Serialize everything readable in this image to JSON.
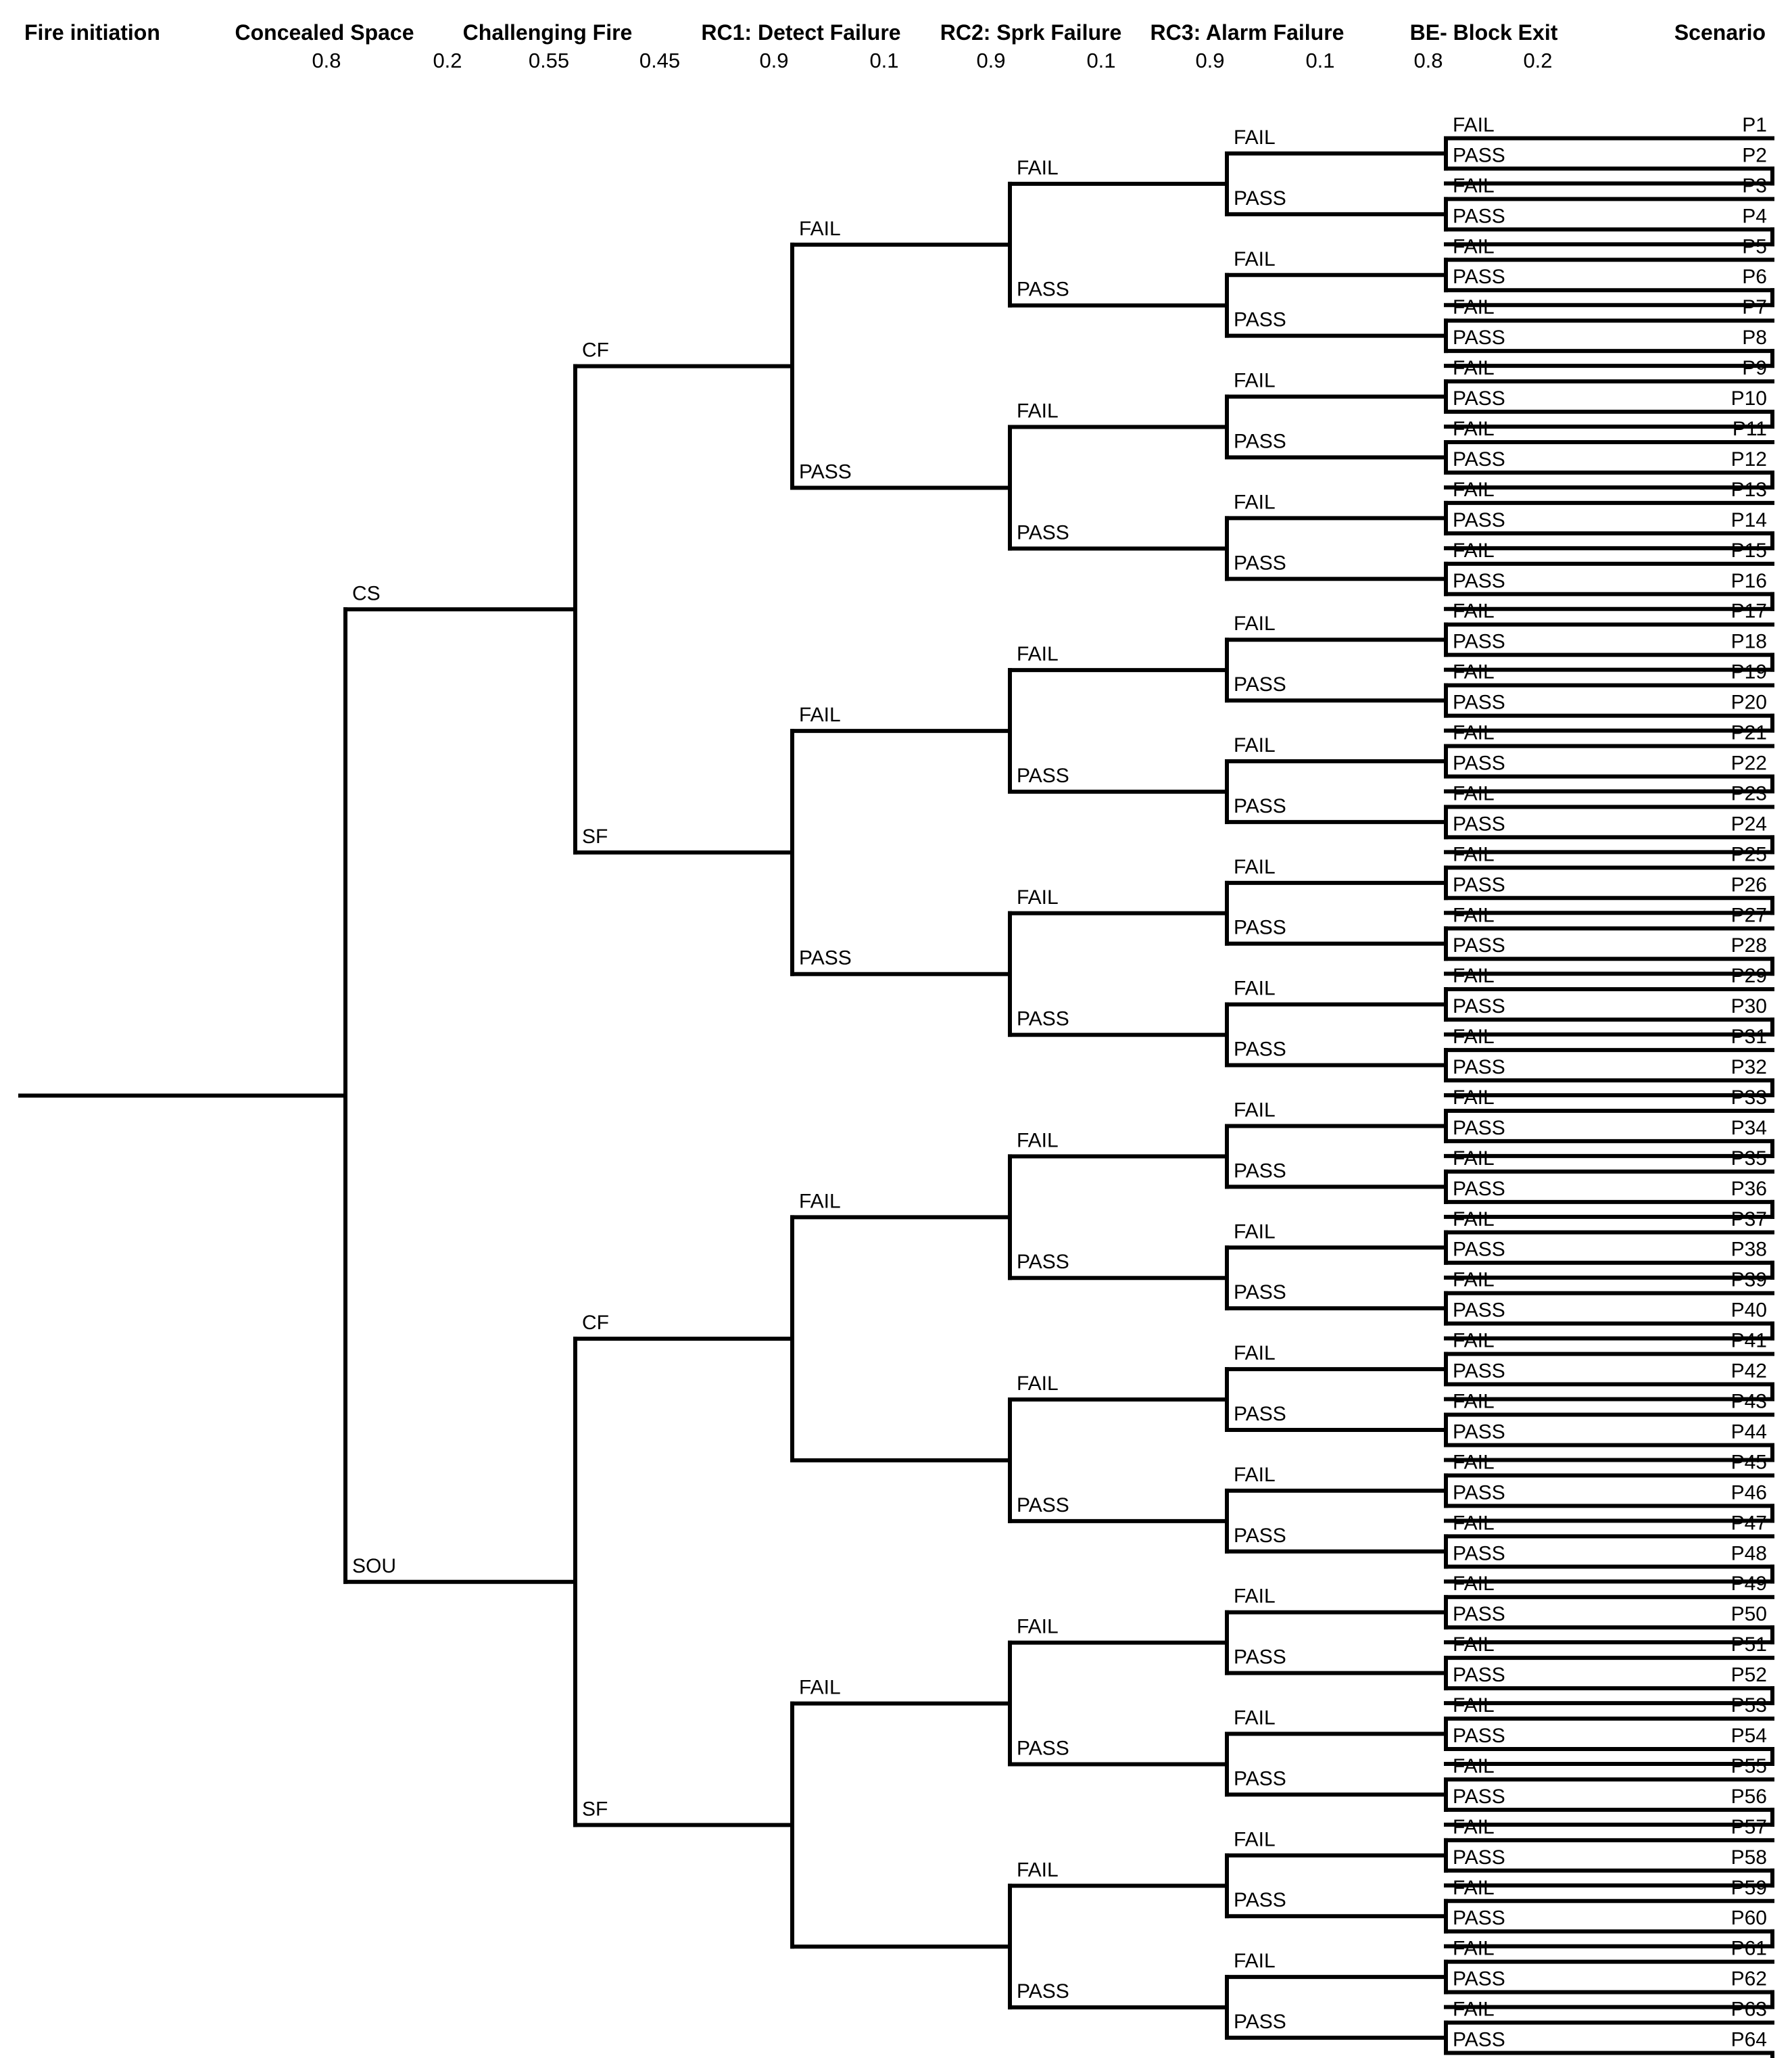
{
  "columns": [
    {
      "key": "fire_initiation",
      "title": "Fire initiation",
      "probs": []
    },
    {
      "key": "concealed_space",
      "title": "Concealed Space",
      "probs": [
        "0.8",
        "0.2"
      ]
    },
    {
      "key": "challenging_fire",
      "title": "Challenging Fire",
      "probs": [
        "0.55",
        "0.45"
      ]
    },
    {
      "key": "rc1",
      "title": "RC1: Detect Failure",
      "probs": [
        "0.9",
        "0.1"
      ]
    },
    {
      "key": "rc2",
      "title": "RC2: Sprk Failure",
      "probs": [
        "0.9",
        "0.1"
      ]
    },
    {
      "key": "rc3",
      "title": "RC3: Alarm Failure",
      "probs": [
        "0.9",
        "0.1"
      ]
    },
    {
      "key": "be",
      "title": "BE- Block Exit",
      "probs": [
        "0.8",
        "0.2"
      ]
    },
    {
      "key": "scenario",
      "title": "Scenario",
      "probs": []
    }
  ],
  "branch_labels": {
    "level1": [
      "CS",
      "SOU"
    ],
    "level2": [
      "CF",
      "SF"
    ],
    "level3": [
      "FAIL",
      "PASS"
    ],
    "level4": [
      "FAIL",
      "PASS"
    ],
    "level5": [
      "FAIL",
      "PASS"
    ],
    "level6": [
      "FAIL",
      "PASS"
    ]
  },
  "missing_labels": [
    {
      "level": 3,
      "node": 2,
      "branch": 1
    },
    {
      "level": 3,
      "node": 3,
      "branch": 1
    }
  ],
  "scenarios": [
    "P1",
    "P2",
    "P3",
    "P4",
    "P5",
    "P6",
    "P7",
    "P8",
    "P9",
    "P10",
    "P11",
    "P12",
    "P13",
    "P14",
    "P15",
    "P16",
    "P17",
    "P18",
    "P19",
    "P20",
    "P21",
    "P22",
    "P23",
    "P24",
    "P25",
    "P26",
    "P27",
    "P28",
    "P29",
    "P30",
    "P31",
    "P32",
    "P33",
    "P34",
    "P35",
    "P36",
    "P37",
    "P38",
    "P39",
    "P40",
    "P41",
    "P42",
    "P43",
    "P44",
    "P45",
    "P46",
    "P47",
    "P48",
    "P49",
    "P50",
    "P51",
    "P52",
    "P53",
    "P54",
    "P55",
    "P56",
    "P57",
    "P58",
    "P59",
    "P60",
    "P61",
    "P62",
    "P63",
    "P64"
  ],
  "colors": {
    "line": "#000000",
    "text": "#000000",
    "background": "#ffffff"
  }
}
